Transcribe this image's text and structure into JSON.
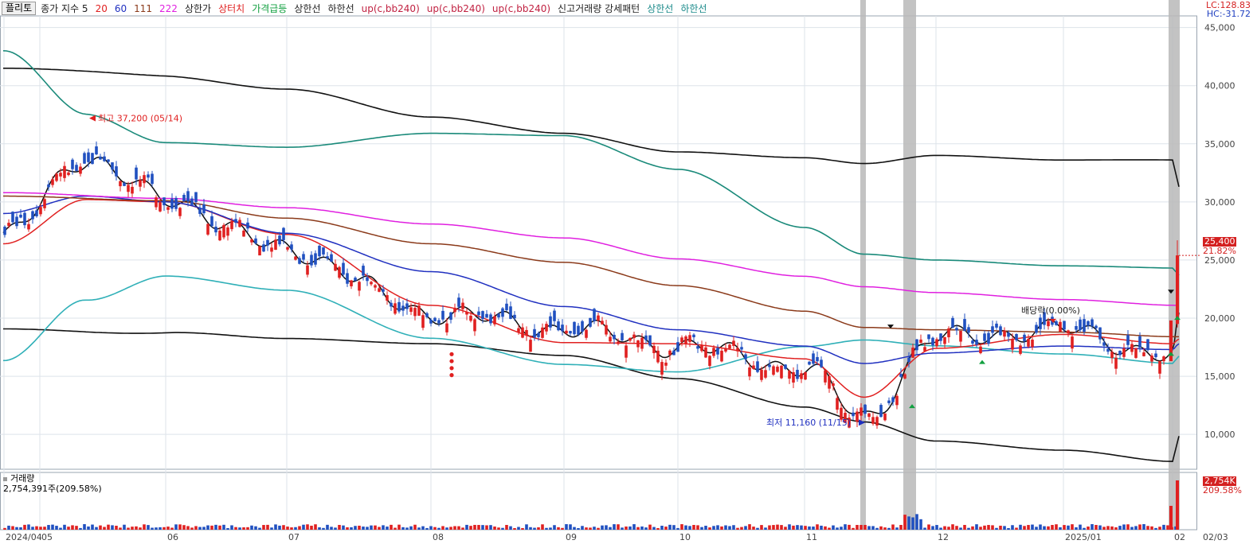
{
  "legend": {
    "chart_button": "플리토",
    "items": [
      {
        "text": "종가 지수 5",
        "color": "#222222"
      },
      {
        "text": "20",
        "color": "#e02020"
      },
      {
        "text": "60",
        "color": "#2030c0"
      },
      {
        "text": "111",
        "color": "#8b3a1a"
      },
      {
        "text": "222",
        "color": "#e020e0"
      },
      {
        "text": "상한가",
        "color": "#222222"
      },
      {
        "text": "상터치",
        "color": "#e02020"
      },
      {
        "text": "가격급등",
        "color": "#12a040"
      },
      {
        "text": "상한선",
        "color": "#222222"
      },
      {
        "text": "하한선",
        "color": "#222222"
      },
      {
        "text": "up(c,bb240)",
        "color": "#c02040"
      },
      {
        "text": "up(c,bb240)",
        "color": "#c02040"
      },
      {
        "text": "up(c,bb240)",
        "color": "#c02040"
      },
      {
        "text": "신고거래량 강세패턴",
        "color": "#222222"
      },
      {
        "text": "상한선",
        "color": "#1a8a8a"
      },
      {
        "text": "하한선",
        "color": "#1a8a8a"
      }
    ]
  },
  "corner": {
    "lc": "LC:128.83",
    "hc": "HC:-31.72",
    "lc_color": "#d42020",
    "hc_color": "#2040c0"
  },
  "colors": {
    "up": "#e02020",
    "down": "#2050c0",
    "ma5": "#111111",
    "ma20": "#e02020",
    "ma60": "#2030c0",
    "ma111": "#8b3a1a",
    "ma222": "#e020e0",
    "bb_black": "#111111",
    "bb_teal": "#1a8a7a",
    "bb_cyan": "#30b0b8",
    "grid": "#dde3ea",
    "highlight": "#b8b8b8"
  },
  "volume": {
    "title": "거래량",
    "value": "2,754,391주(209.58%)",
    "tag": "2,754K",
    "tag_pct": "209.58%"
  },
  "price_tag": {
    "value": "25,400",
    "pct": "21.82%"
  },
  "annotations": {
    "high": "최고 37,200 (05/14)",
    "low": "최저 11,160 (11/15)",
    "dividend": "배당락(0.00%)"
  },
  "chart_data": {
    "type": "candlestick",
    "y_ticks": [
      "45,000",
      "40,000",
      "35,000",
      "30,000",
      "25,000",
      "20,000",
      "15,000",
      "10,000"
    ],
    "y_values": [
      45000,
      40000,
      35000,
      30000,
      25000,
      20000,
      15000,
      10000
    ],
    "ylim": [
      7000,
      46000
    ],
    "x_labels": [
      "2024/04",
      "05",
      "06",
      "07",
      "08",
      "09",
      "10",
      "11",
      "12",
      "2025/01",
      "02",
      "02/03"
    ],
    "last_close": 25400,
    "series": [
      {
        "name": "종가 지수 5",
        "keypoints": [
          [
            "2024/04",
            27000
          ],
          [
            "05/14",
            33800
          ],
          [
            "06",
            30200
          ],
          [
            "07",
            25900
          ],
          [
            "08",
            20500
          ],
          [
            "09",
            19100
          ],
          [
            "10",
            17600
          ],
          [
            "11",
            15800
          ],
          [
            "11/15",
            11400
          ],
          [
            "12",
            18300
          ],
          [
            "2025/01",
            19000
          ],
          [
            "02",
            16700
          ],
          [
            "02/03",
            19500
          ]
        ]
      },
      {
        "name": "20",
        "keypoints": [
          [
            "2024/04",
            26400
          ],
          [
            "05/14",
            30200
          ],
          [
            "06",
            30000
          ],
          [
            "07",
            27200
          ],
          [
            "08",
            21100
          ],
          [
            "09",
            17900
          ],
          [
            "10",
            17800
          ],
          [
            "11",
            16500
          ],
          [
            "11/15",
            13200
          ],
          [
            "12",
            17400
          ],
          [
            "2025/01",
            18600
          ],
          [
            "02",
            17800
          ],
          [
            "02/03",
            18200
          ]
        ]
      },
      {
        "name": "60",
        "keypoints": [
          [
            "2024/04",
            29000
          ],
          [
            "05/14",
            30500
          ],
          [
            "06",
            30000
          ],
          [
            "07",
            27300
          ],
          [
            "08",
            24000
          ],
          [
            "09",
            21000
          ],
          [
            "10",
            19000
          ],
          [
            "11",
            17600
          ],
          [
            "11/15",
            16100
          ],
          [
            "12",
            17000
          ],
          [
            "2025/01",
            17600
          ],
          [
            "02",
            17300
          ],
          [
            "02/03",
            17800
          ]
        ]
      },
      {
        "name": "111",
        "keypoints": [
          [
            "2024/04",
            30500
          ],
          [
            "06",
            30100
          ],
          [
            "07",
            28600
          ],
          [
            "08",
            26400
          ],
          [
            "09",
            24800
          ],
          [
            "10",
            22800
          ],
          [
            "11",
            20600
          ],
          [
            "11/15",
            19200
          ],
          [
            "12",
            19000
          ],
          [
            "2025/01",
            18800
          ],
          [
            "02/03",
            18400
          ]
        ]
      },
      {
        "name": "222",
        "keypoints": [
          [
            "2024/04",
            30800
          ],
          [
            "06",
            30300
          ],
          [
            "07",
            29500
          ],
          [
            "08",
            28100
          ],
          [
            "09",
            26900
          ],
          [
            "10",
            25100
          ],
          [
            "11",
            23600
          ],
          [
            "11/15",
            22700
          ],
          [
            "12",
            22200
          ],
          [
            "2025/01",
            21600
          ],
          [
            "02/03",
            21100
          ]
        ]
      }
    ],
    "annotation_values": {
      "high": 37200,
      "low": 11160
    }
  }
}
